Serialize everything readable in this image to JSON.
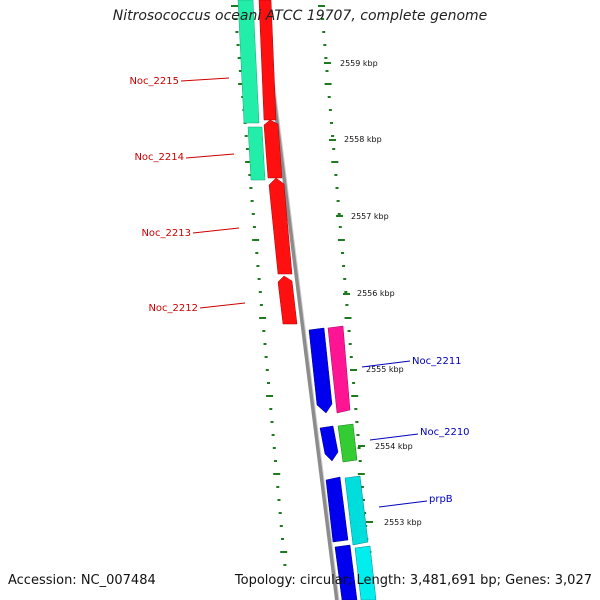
{
  "title": "Nitrosococcus oceani ATCC 19707, complete genome",
  "footer": {
    "accession": "Accession: NC_007484",
    "summary": "Topology: circular; Length: 3,481,691 bp; Genes: 3,027"
  },
  "colors": {
    "backbone": "#8c8c8c",
    "tick": "#1f7a1f",
    "left_label": "#cc0000",
    "right_label": "#0000bb",
    "scale_text": "#111111"
  },
  "ruler": {
    "labels": [
      "2559 kbp",
      "2558 kbp",
      "2557 kbp",
      "2556 kbp",
      "2555 kbp",
      "2554 kbp",
      "2553 kbp"
    ]
  },
  "genes": {
    "left_strand": [
      {
        "label": "Noc_2215",
        "strand": "-",
        "color": "#ff0000",
        "partner_color": "#00ee99"
      },
      {
        "label": "Noc_2214",
        "strand": "-",
        "color": "#ff0000",
        "partner_color": "#00ee99"
      },
      {
        "label": "Noc_2213",
        "strand": "-",
        "color": "#ff0000"
      },
      {
        "label": "Noc_2212",
        "strand": "-",
        "color": "#ff0000"
      }
    ],
    "right_strand": [
      {
        "label": "Noc_2211",
        "strand": "+",
        "color": "#0000ee",
        "partner_color": "#ff1493"
      },
      {
        "label": "Noc_2210",
        "strand": "+",
        "color": "#0000ee",
        "partner_color": "#33cc33"
      },
      {
        "label": "prpB",
        "strand": "+",
        "color": "#0000ee",
        "partner_color": "#00dddd"
      }
    ]
  }
}
